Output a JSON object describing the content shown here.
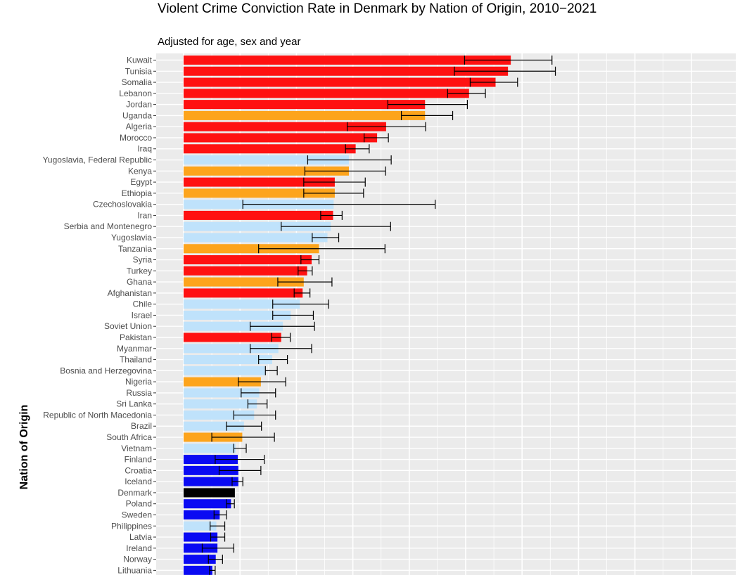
{
  "chart_data": {
    "type": "bar",
    "orientation": "horizontal",
    "title": "Violent Crime Conviction Rate in Denmark by Nation of Origin, 2010−2021",
    "subtitle": "Adjusted for age, sex and year",
    "ylabel": "Nation of Origin",
    "xlabel": "",
    "xlim": [
      0,
      9
    ],
    "grid": true,
    "legend": "none",
    "colors": {
      "red": "#ff1111",
      "orange": "#fda41c",
      "lightblue": "#bfe2fb",
      "blue": "#0a0af3",
      "black": "#000000",
      "panel": "#ebebeb",
      "errorbar": "#000000"
    },
    "categories": [
      "Kuwait",
      "Tunisia",
      "Somalia",
      "Lebanon",
      "Jordan",
      "Uganda",
      "Algeria",
      "Morocco",
      "Iraq",
      "Yugoslavia, Federal Republic",
      "Kenya",
      "Egypt",
      "Ethiopia",
      "Czechoslovakia",
      "Iran",
      "Serbia and Montenegro",
      "Yugoslavia",
      "Tanzania",
      "Syria",
      "Turkey",
      "Ghana",
      "Afghanistan",
      "Chile",
      "Israel",
      "Soviet Union",
      "Pakistan",
      "Myanmar",
      "Thailand",
      "Bosnia and Herzegovina",
      "Nigeria",
      "Russia",
      "Sri Lanka",
      "Republic of North Macedonia",
      "Brazil",
      "South Africa",
      "Vietnam",
      "Finland",
      "Croatia",
      "Iceland",
      "Denmark",
      "Poland",
      "Sweden",
      "Philippines",
      "Latvia",
      "Ireland",
      "Norway",
      "Lithuania"
    ],
    "values": [
      5.8,
      5.75,
      5.53,
      5.06,
      4.28,
      4.28,
      3.59,
      3.43,
      3.05,
      2.93,
      2.93,
      2.68,
      2.68,
      2.66,
      2.65,
      2.61,
      2.55,
      2.4,
      2.27,
      2.19,
      2.13,
      2.11,
      2.06,
      1.9,
      1.76,
      1.73,
      1.68,
      1.57,
      1.44,
      1.37,
      1.34,
      1.3,
      1.25,
      1.07,
      1.04,
      0.92,
      0.96,
      0.97,
      0.97,
      0.9,
      0.84,
      0.64,
      0.58,
      0.6,
      0.6,
      0.57,
      0.51
    ],
    "ci_low": [
      4.98,
      4.8,
      5.08,
      4.68,
      3.62,
      3.86,
      2.9,
      3.2,
      2.87,
      2.2,
      2.15,
      2.13,
      2.13,
      1.05,
      2.43,
      1.73,
      2.28,
      1.33,
      2.08,
      2.03,
      1.67,
      1.96,
      1.58,
      1.58,
      1.18,
      1.56,
      1.18,
      1.33,
      1.45,
      0.97,
      1.02,
      1.14,
      0.89,
      0.76,
      0.5,
      0.89,
      0.56,
      0.63,
      0.86,
      0.9,
      0.76,
      0.54,
      0.47,
      0.48,
      0.33,
      0.44,
      0.46
    ],
    "ci_high": [
      6.53,
      6.59,
      5.92,
      5.35,
      5.03,
      4.77,
      4.29,
      3.63,
      3.29,
      3.68,
      3.58,
      3.22,
      3.19,
      4.46,
      2.81,
      3.67,
      2.75,
      3.57,
      2.4,
      2.28,
      2.63,
      2.24,
      2.57,
      2.3,
      2.32,
      1.89,
      2.27,
      1.84,
      1.66,
      1.81,
      1.63,
      1.48,
      1.63,
      1.38,
      1.61,
      1.11,
      1.43,
      1.37,
      1.05,
      0.9,
      0.9,
      0.76,
      0.73,
      0.73,
      0.89,
      0.69,
      0.56
    ],
    "bar_colors": [
      "red",
      "red",
      "red",
      "red",
      "red",
      "orange",
      "red",
      "red",
      "red",
      "lightblue",
      "orange",
      "red",
      "orange",
      "lightblue",
      "red",
      "lightblue",
      "lightblue",
      "orange",
      "red",
      "red",
      "orange",
      "red",
      "lightblue",
      "lightblue",
      "lightblue",
      "red",
      "lightblue",
      "lightblue",
      "lightblue",
      "orange",
      "lightblue",
      "lightblue",
      "lightblue",
      "lightblue",
      "orange",
      "lightblue",
      "blue",
      "blue",
      "blue",
      "black",
      "blue",
      "blue",
      "lightblue",
      "blue",
      "blue",
      "blue",
      "blue"
    ]
  }
}
